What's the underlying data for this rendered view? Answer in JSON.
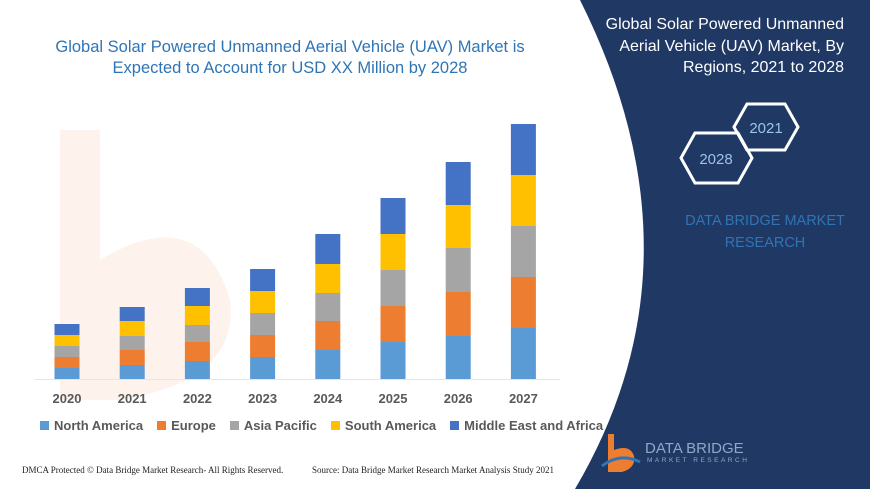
{
  "title": "Global Solar Powered Unmanned Aerial Vehicle (UAV) Market is Expected to Account for USD XX Million by 2028",
  "panel": {
    "title": "Global Solar Powered Unmanned Aerial Vehicle (UAV) Market, By Regions, 2021 to 2028",
    "hex_start": "2021",
    "hex_end": "2028",
    "brand_text": "DATA BRIDGE MARKET RESEARCH",
    "background": "#1f3864"
  },
  "logo": {
    "name": "DATA BRIDGE",
    "sub": "MARKET RESEARCH"
  },
  "footer": {
    "left": "DMCA Protected © Data Bridge Market Research- All Rights Reserved.",
    "right": "Source: Data Bridge Market Research Market Analysis Study 2021"
  },
  "chart_data": {
    "type": "bar",
    "stacked": true,
    "title": "",
    "xlabel": "",
    "ylabel": "",
    "y_axis_shown": false,
    "grid": false,
    "legend_position": "bottom",
    "categories": [
      "2020",
      "2021",
      "2022",
      "2023",
      "2024",
      "2025",
      "2026",
      "2027"
    ],
    "series": [
      {
        "name": "North America",
        "color": "#5b9bd5",
        "values": [
          11,
          14,
          18,
          22,
          29,
          37,
          43,
          51
        ]
      },
      {
        "name": "Europe",
        "color": "#ed7d31",
        "values": [
          11,
          15,
          19,
          22,
          29,
          36,
          44,
          51
        ]
      },
      {
        "name": "Asia Pacific",
        "color": "#a5a5a5",
        "values": [
          11,
          14,
          17,
          22,
          28,
          36,
          44,
          51
        ]
      },
      {
        "name": "South America",
        "color": "#ffc000",
        "values": [
          11,
          15,
          19,
          22,
          29,
          36,
          43,
          51
        ]
      },
      {
        "name": "Middle East and Africa",
        "color": "#4472c4",
        "values": [
          11,
          14,
          18,
          22,
          30,
          36,
          43,
          51
        ]
      }
    ]
  }
}
